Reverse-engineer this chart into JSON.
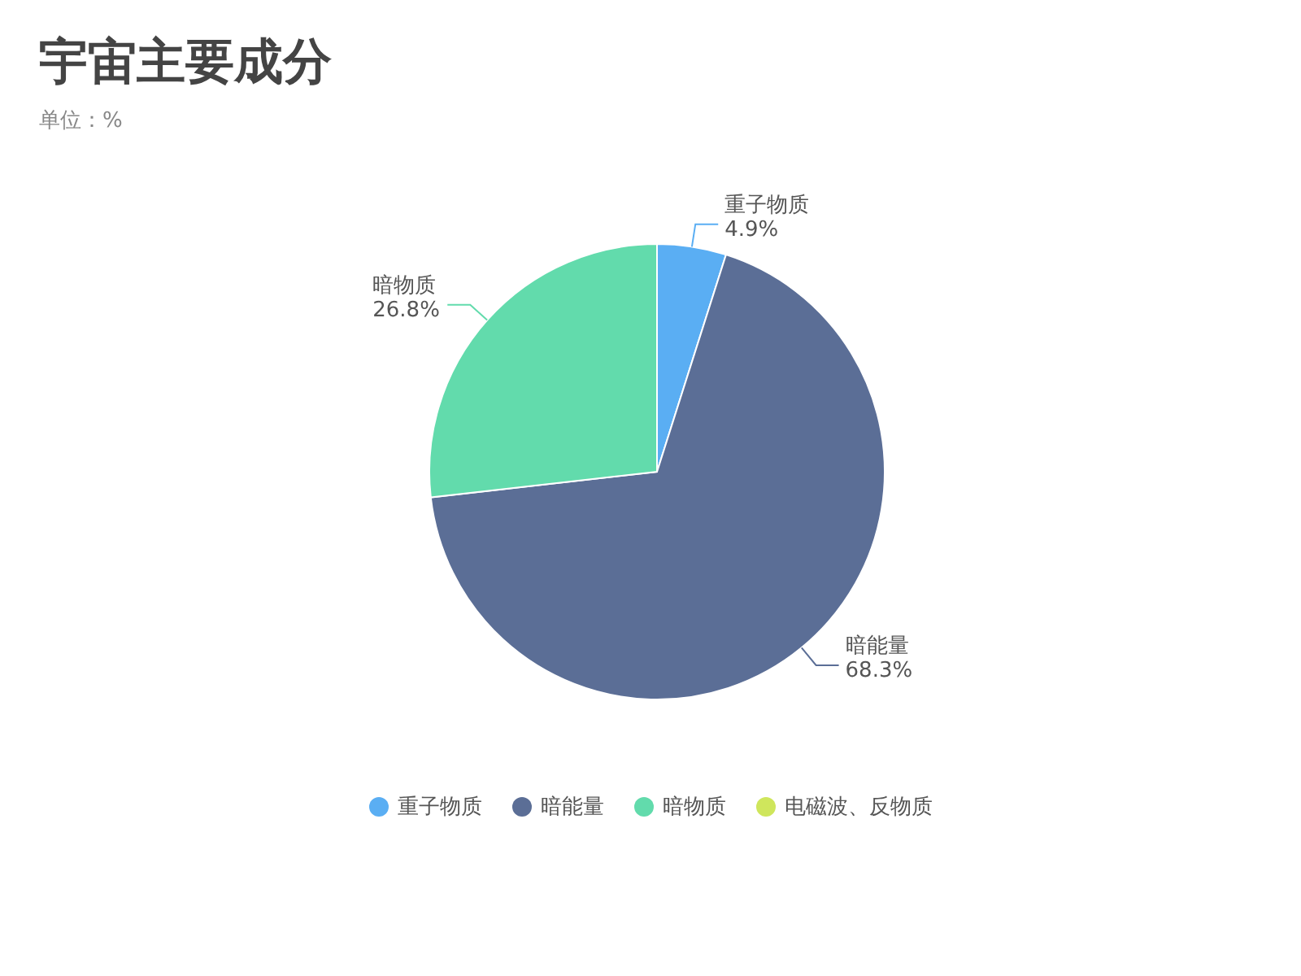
{
  "chart_data": {
    "type": "pie",
    "title": "宇宙主要成分",
    "subtitle": "单位：%",
    "categories": [
      "重子物质",
      "暗能量",
      "暗物质",
      "电磁波、反物质"
    ],
    "values": [
      4.9,
      68.3,
      26.8,
      0
    ],
    "colors": [
      "#5aaef3",
      "#5b6e96",
      "#62dbac",
      "#cfe65c"
    ],
    "value_labels": [
      "4.9%",
      "68.3%",
      "26.8%",
      null
    ],
    "legend": "bottom"
  }
}
